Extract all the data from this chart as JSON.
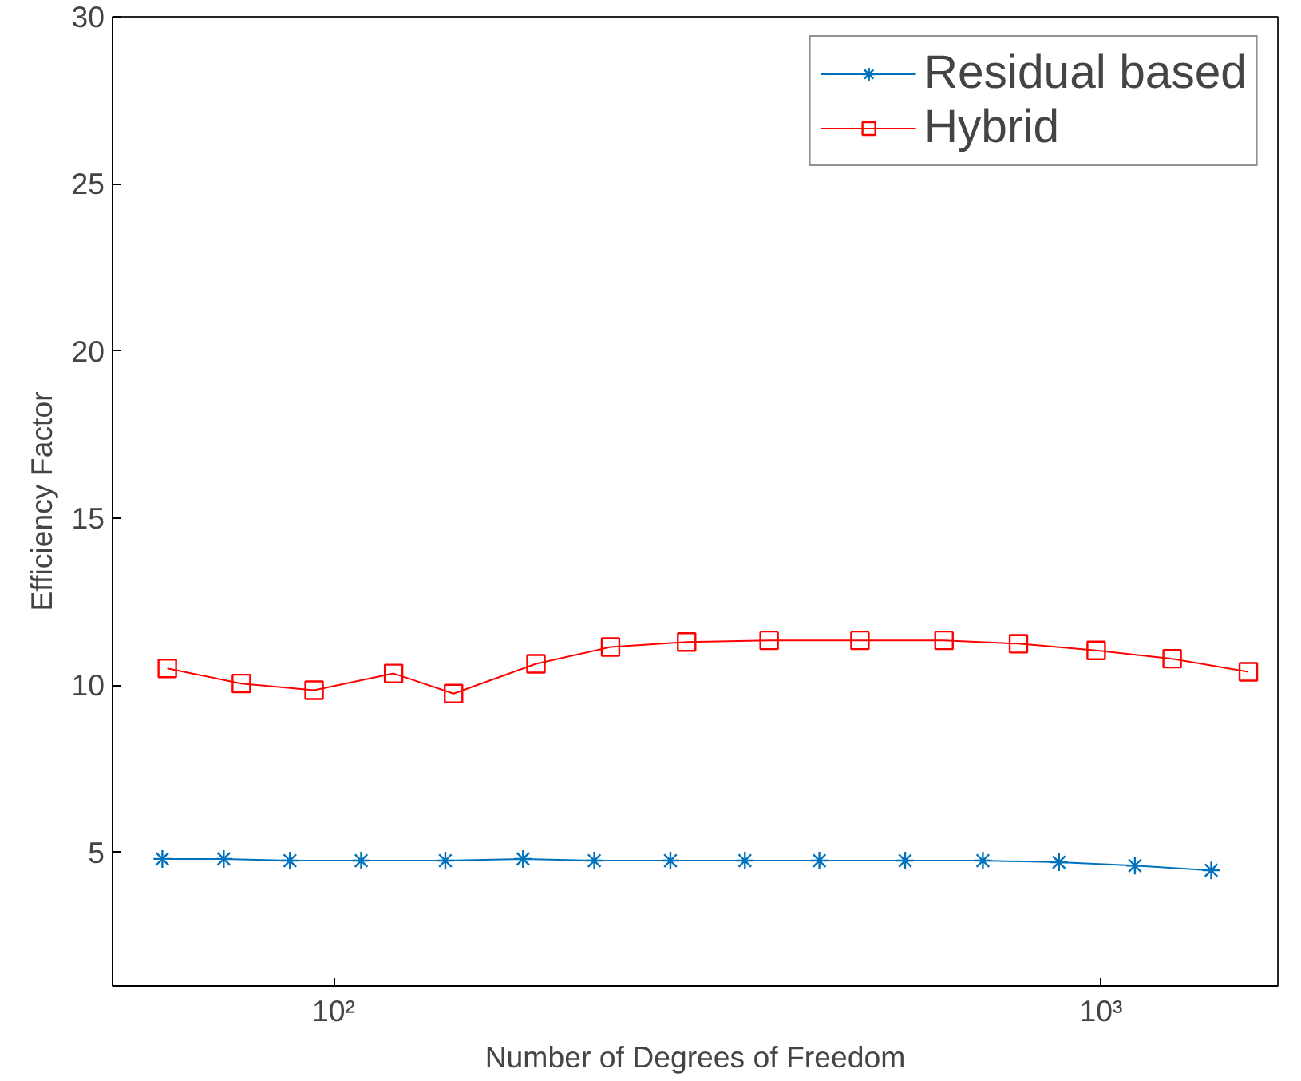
{
  "chart_data": {
    "type": "line",
    "xlabel": "Number of Degrees of Freedom",
    "ylabel": "Efficiency Factor",
    "log": "x",
    "xlim": [
      51.5,
      1700
    ],
    "ylim": [
      1,
      30
    ],
    "xticks": [
      {
        "value": 100,
        "label": "10²"
      },
      {
        "value": 1000,
        "label": "10³"
      }
    ],
    "yticks": [
      5,
      10,
      15,
      20,
      25,
      30
    ],
    "grid": false,
    "legend": "top right",
    "line_style": "solid",
    "series": [
      {
        "name": "Residual based",
        "color": "#0072bd",
        "marker": "cross",
        "x": [
          59.8,
          71.9,
          87.7,
          108.6,
          139.8,
          176.5,
          218.6,
          274.7,
          343.5,
          429.5,
          555.5,
          701.5,
          881.5,
          1107,
          1392
        ],
        "values": [
          4.8,
          4.8,
          4.75,
          4.75,
          4.75,
          4.8,
          4.75,
          4.75,
          4.75,
          4.75,
          4.75,
          4.75,
          4.7,
          4.6,
          4.46
        ]
      },
      {
        "name": "Hybrid",
        "color": "#ff0000",
        "marker": "square",
        "x": [
          60.7,
          75.8,
          94.3,
          119.7,
          143.3,
          183.5,
          229.5,
          288.4,
          369.4,
          485.1,
          624.3,
          780.6,
          985.6,
          1238,
          1556
        ],
        "values": [
          10.5,
          10.05,
          9.85,
          10.35,
          9.75,
          10.64,
          11.14,
          11.29,
          11.34,
          11.34,
          11.34,
          11.24,
          11.04,
          10.79,
          10.4
        ]
      }
    ]
  }
}
